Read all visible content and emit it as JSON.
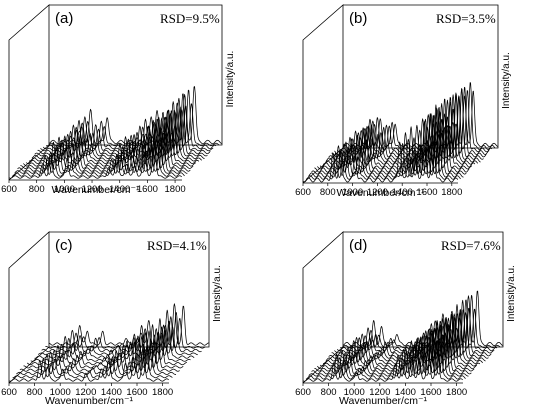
{
  "chart_data": [
    {
      "type": "line",
      "panel_label": "(a)",
      "annotation": "RSD=9.5%",
      "xlabel": "Wavenumber/cm⁻¹",
      "ylabel": "Intensity/a.u.",
      "x_ticks": [
        "600",
        "800",
        "1000",
        "1200",
        "1400",
        "1600",
        "1800"
      ],
      "xlim": [
        600,
        1850
      ],
      "n_spectra": 15,
      "peaks": [
        {
          "x": 840,
          "rel_intensity": 0.3
        },
        {
          "x": 900,
          "rel_intensity": 0.55
        },
        {
          "x": 1020,
          "rel_intensity": 0.45
        },
        {
          "x": 1320,
          "rel_intensity": 0.25
        },
        {
          "x": 1380,
          "rel_intensity": 0.55
        },
        {
          "x": 1450,
          "rel_intensity": 0.35
        },
        {
          "x": 1510,
          "rel_intensity": 0.3
        },
        {
          "x": 1580,
          "rel_intensity": 0.85
        },
        {
          "x": 1650,
          "rel_intensity": 1.0
        }
      ]
    },
    {
      "type": "line",
      "panel_label": "(b)",
      "annotation": "RSD=3.5%",
      "xlabel": "Wavenumber/cm⁻¹",
      "ylabel": "Intensity/a.u.",
      "x_ticks": [
        "600",
        "800",
        "1000",
        "1200",
        "1400",
        "1600",
        "1800"
      ],
      "xlim": [
        600,
        1850
      ],
      "n_spectra": 15,
      "peaks": [
        {
          "x": 840,
          "rel_intensity": 0.4
        },
        {
          "x": 900,
          "rel_intensity": 0.45
        },
        {
          "x": 1020,
          "rel_intensity": 0.4
        },
        {
          "x": 1380,
          "rel_intensity": 0.6
        },
        {
          "x": 1450,
          "rel_intensity": 0.35
        },
        {
          "x": 1510,
          "rel_intensity": 0.4
        },
        {
          "x": 1580,
          "rel_intensity": 0.9
        },
        {
          "x": 1650,
          "rel_intensity": 1.0
        }
      ]
    },
    {
      "type": "line",
      "panel_label": "(c)",
      "annotation": "RSD=4.1%",
      "xlabel": "Wavenumber/cm⁻¹",
      "ylabel": "Intensity/a.u.",
      "x_ticks": [
        "600",
        "800",
        "1000",
        "1200",
        "1400",
        "1600",
        "1800"
      ],
      "xlim": [
        600,
        1850
      ],
      "n_spectra": 12,
      "peaks": [
        {
          "x": 840,
          "rel_intensity": 0.5
        },
        {
          "x": 900,
          "rel_intensity": 0.35
        },
        {
          "x": 1020,
          "rel_intensity": 0.3
        },
        {
          "x": 1200,
          "rel_intensity": 0.15
        },
        {
          "x": 1320,
          "rel_intensity": 0.3
        },
        {
          "x": 1380,
          "rel_intensity": 0.6
        },
        {
          "x": 1510,
          "rel_intensity": 0.45
        },
        {
          "x": 1580,
          "rel_intensity": 1.0
        },
        {
          "x": 1650,
          "rel_intensity": 0.95
        }
      ]
    },
    {
      "type": "line",
      "panel_label": "(d)",
      "annotation": "RSD=7.6%",
      "xlabel": "Wavenumber/cm⁻¹",
      "ylabel": "Intensity/a.u.",
      "x_ticks": [
        "600",
        "800",
        "1000",
        "1200",
        "1400",
        "1600",
        "1800"
      ],
      "xlim": [
        600,
        1850
      ],
      "n_spectra": 15,
      "peaks": [
        {
          "x": 840,
          "rel_intensity": 0.4
        },
        {
          "x": 900,
          "rel_intensity": 0.3
        },
        {
          "x": 1020,
          "rel_intensity": 0.2
        },
        {
          "x": 1320,
          "rel_intensity": 0.4
        },
        {
          "x": 1380,
          "rel_intensity": 0.55
        },
        {
          "x": 1450,
          "rel_intensity": 0.6
        },
        {
          "x": 1510,
          "rel_intensity": 0.5
        },
        {
          "x": 1580,
          "rel_intensity": 0.9
        },
        {
          "x": 1650,
          "rel_intensity": 1.0
        }
      ]
    }
  ]
}
